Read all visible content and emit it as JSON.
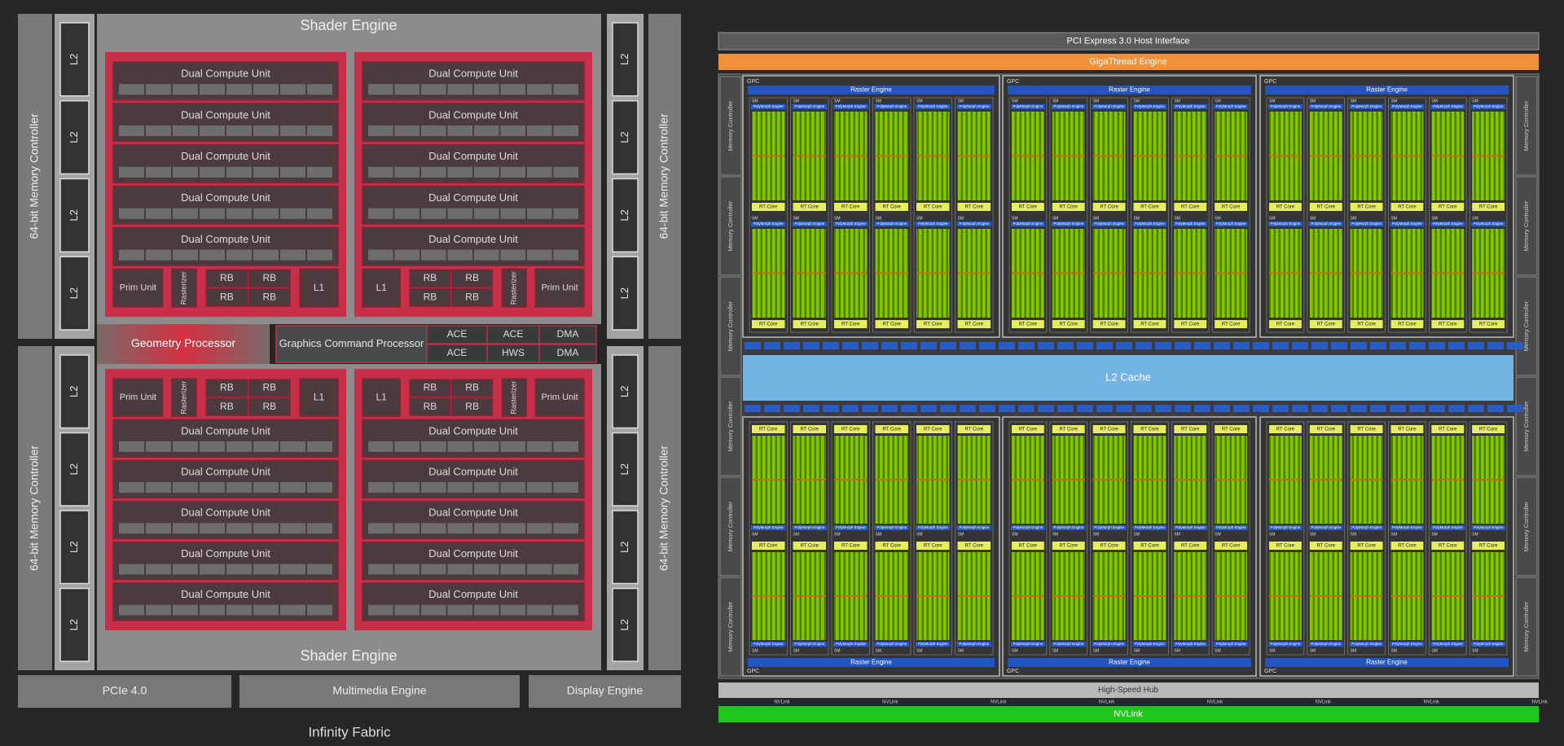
{
  "amd": {
    "shader_engine_top": "Shader Engine",
    "shader_engine_bottom": "Shader Engine",
    "quadrants": [
      {
        "dcus": [
          "Dual Compute Unit",
          "Dual Compute Unit",
          "Dual Compute Unit",
          "Dual Compute Unit",
          "Dual Compute Unit"
        ],
        "prim_unit": "Prim Unit",
        "rasterizer": "Rasterizer",
        "rbs": [
          "RB",
          "RB",
          "RB",
          "RB"
        ],
        "l1": "L1"
      },
      {
        "dcus": [
          "Dual Compute Unit",
          "Dual Compute Unit",
          "Dual Compute Unit",
          "Dual Compute Unit",
          "Dual Compute Unit"
        ],
        "prim_unit": "Prim Unit",
        "rasterizer": "Rasterizer",
        "rbs": [
          "RB",
          "RB",
          "RB",
          "RB"
        ],
        "l1": "L1"
      },
      {
        "dcus": [
          "Dual Compute Unit",
          "Dual Compute Unit",
          "Dual Compute Unit",
          "Dual Compute Unit",
          "Dual Compute Unit"
        ],
        "prim_unit": "Prim Unit",
        "rasterizer": "Rasterizer",
        "rbs": [
          "RB",
          "RB",
          "RB",
          "RB"
        ],
        "l1": "L1"
      },
      {
        "dcus": [
          "Dual Compute Unit",
          "Dual Compute Unit",
          "Dual Compute Unit",
          "Dual Compute Unit",
          "Dual Compute Unit"
        ],
        "prim_unit": "Prim Unit",
        "rasterizer": "Rasterizer",
        "rbs": [
          "RB",
          "RB",
          "RB",
          "RB"
        ],
        "l1": "L1"
      }
    ],
    "memory_controllers": [
      "64-bit Memory Controller",
      "64-bit Memory Controller",
      "64-bit Memory Controller",
      "64-bit Memory Controller"
    ],
    "l2": [
      "L2",
      "L2",
      "L2",
      "L2",
      "L2",
      "L2",
      "L2",
      "L2",
      "L2",
      "L2",
      "L2",
      "L2",
      "L2",
      "L2",
      "L2",
      "L2"
    ],
    "geometry_processor": "Geometry Processor",
    "command_processor": "Graphics Command Processor",
    "front_end_blocks": [
      "ACE",
      "ACE",
      "ACE",
      "HWS",
      "DMA",
      "DMA"
    ],
    "io": [
      "PCIe 4.0",
      "Multimedia Engine",
      "Display Engine"
    ],
    "fabric": "Infinity Fabric"
  },
  "nvidia": {
    "host_interface": "PCI Express 3.0 Host Interface",
    "gigathread": "GigaThread Engine",
    "memory_controllers": [
      "Memory Controller",
      "Memory Controller",
      "Memory Controller",
      "Memory Controller",
      "Memory Controller",
      "Memory Controller",
      "Memory Controller",
      "Memory Controller",
      "Memory Controller",
      "Memory Controller",
      "Memory Controller",
      "Memory Controller"
    ],
    "gpcs": [
      {
        "label": "GPC",
        "raster_engine": "Raster Engine"
      },
      {
        "label": "GPC",
        "raster_engine": "Raster Engine"
      },
      {
        "label": "GPC",
        "raster_engine": "Raster Engine"
      },
      {
        "label": "GPC",
        "raster_engine": "Raster Engine"
      },
      {
        "label": "GPC",
        "raster_engine": "Raster Engine"
      },
      {
        "label": "GPC",
        "raster_engine": "Raster Engine"
      }
    ],
    "sm_parts": {
      "sm": "SM",
      "polymorph": "PolyMorph Engine",
      "rt_core": "RT Core"
    },
    "l2": "L2 Cache",
    "hub": "High-Speed Hub",
    "nvlink_ports": [
      "NVLink",
      "NVLink",
      "NVLink",
      "NVLink",
      "NVLink",
      "NVLink",
      "NVLink",
      "NVLink"
    ],
    "nvlink": "NVLink"
  }
}
